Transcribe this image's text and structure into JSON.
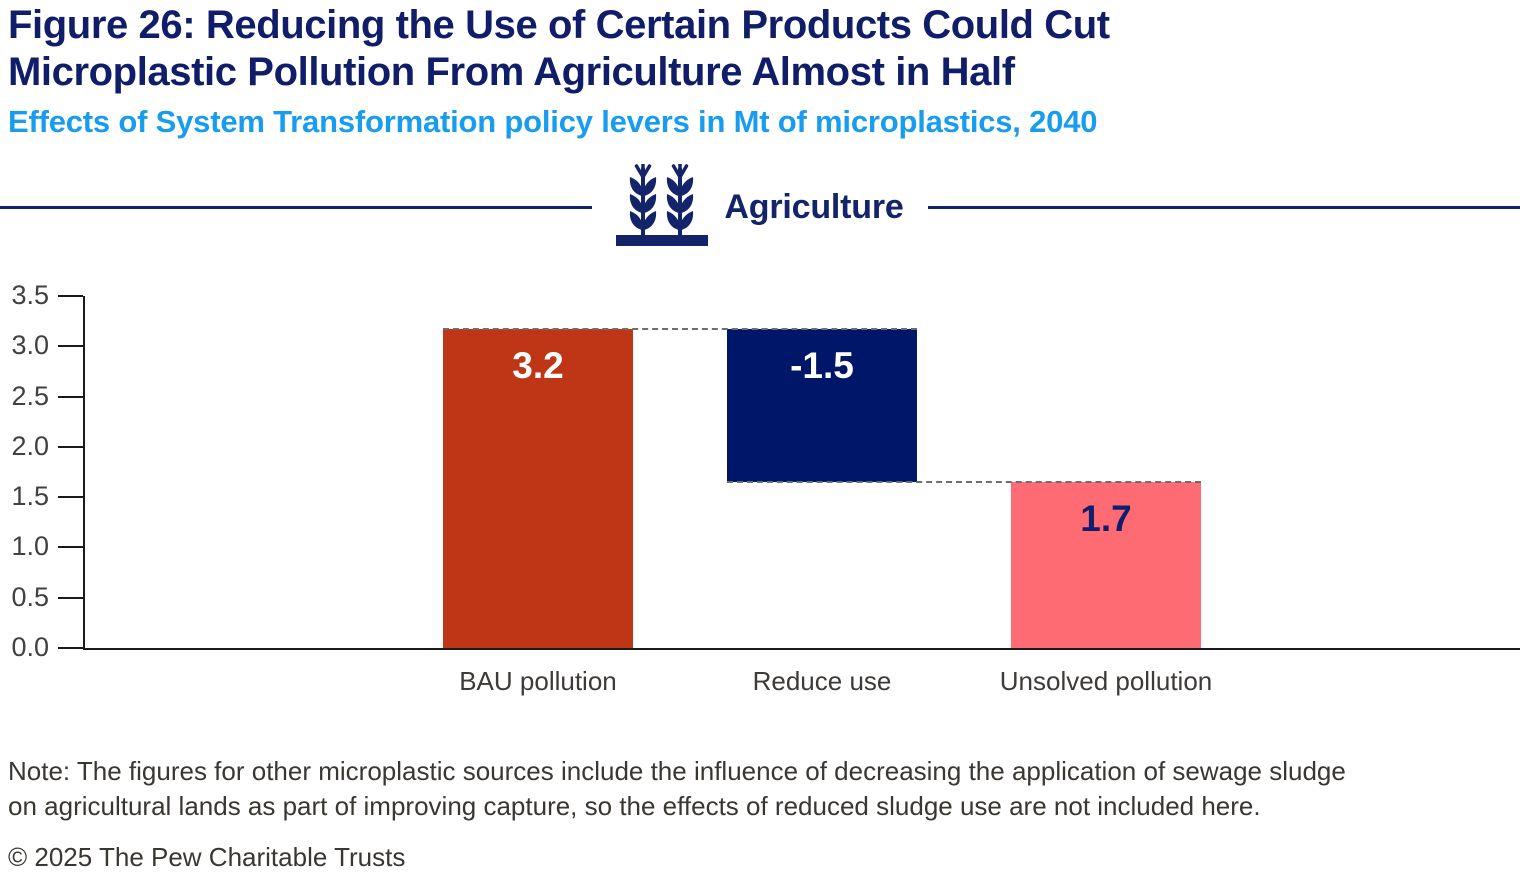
{
  "header": {
    "title": "Figure 26: Reducing the Use of Certain Products Could Cut\nMicroplastic Pollution From Agriculture Almost in Half",
    "subtitle": "Effects of System Transformation policy levers in Mt of microplastics, 2040"
  },
  "section": {
    "label": "Agriculture",
    "icon": "wheat-icon"
  },
  "chart_data": {
    "type": "bar",
    "subtype": "waterfall",
    "title": "Agriculture",
    "xlabel": "",
    "ylabel": "Mt of microplastics",
    "categories": [
      "BAU pollution",
      "Reduce use",
      "Unsolved pollution"
    ],
    "values": [
      3.2,
      -1.5,
      1.7
    ],
    "value_labels": [
      "3.2",
      "-1.5",
      "1.7"
    ],
    "bar_ranges": [
      [
        0,
        3.17
      ],
      [
        1.65,
        3.17
      ],
      [
        0,
        1.65
      ]
    ],
    "bar_colors": [
      "#bf3617",
      "#001669",
      "#fe6b73"
    ],
    "value_label_colors": [
      "#ffffff",
      "#ffffff",
      "#101e6b"
    ],
    "ylim": [
      0,
      3.5
    ],
    "ytick_labels": [
      "0.0",
      "0.5",
      "1.0",
      "1.5",
      "2.0",
      "2.5",
      "3.0",
      "3.5"
    ],
    "grid": false,
    "legend": null,
    "connectors": [
      {
        "value": 3.17,
        "from": 0,
        "to": 1
      },
      {
        "value": 1.65,
        "from": 1,
        "to": 2
      }
    ]
  },
  "footer": {
    "note": "Note: The figures for other microplastic sources include the influence of decreasing the application of sewage sludge\non agricultural lands as part of improving capture, so the effects of reduced sludge use are not included here.",
    "copyright": "© 2025 The Pew Charitable Trusts"
  },
  "colors": {
    "title_navy": "#101d69",
    "subtitle_blue": "#189cf0",
    "header_navy": "#14246b",
    "axis_black": "#1a1a1a",
    "tick_label_gray": "#414042",
    "category_label_gray": "#3d3a38",
    "note_gray": "#3a3733",
    "connector_gray": "#6e6e6e"
  }
}
